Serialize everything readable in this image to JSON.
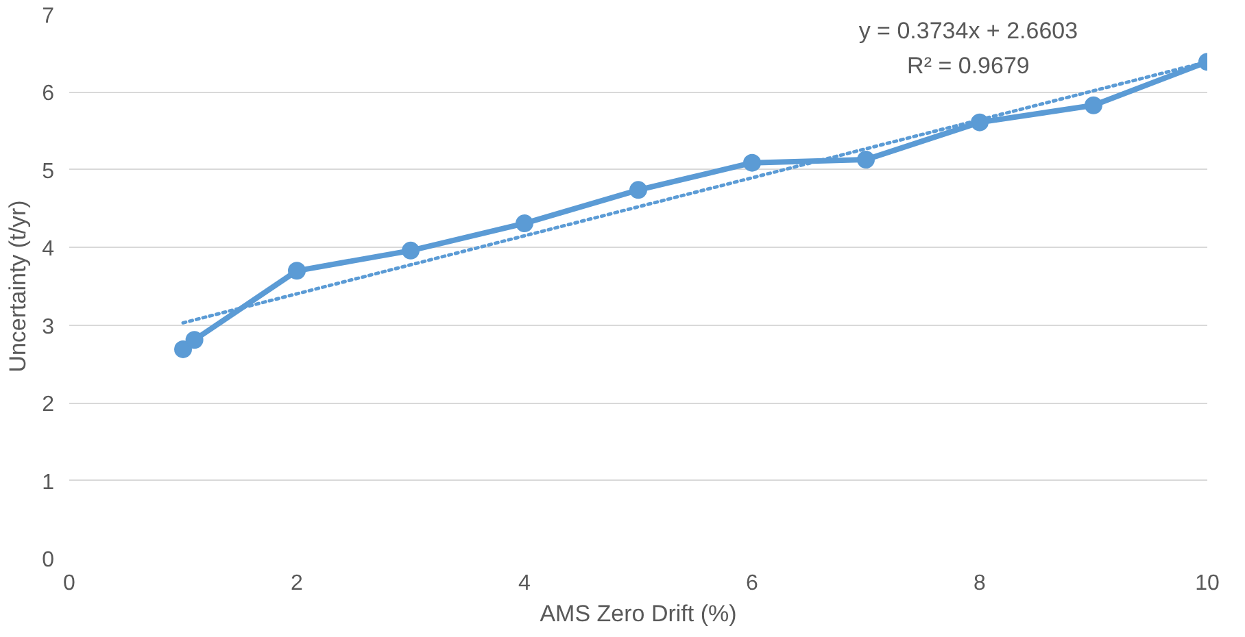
{
  "chart_data": {
    "type": "line",
    "xlabel": "AMS Zero Drift (%)",
    "ylabel": "Uncertainty (t/yr)",
    "xlim": [
      0,
      10
    ],
    "xticks": [
      0,
      2,
      4,
      6,
      8,
      10
    ],
    "ylim": [
      0,
      7
    ],
    "yticks": [
      0,
      1,
      2,
      3,
      4,
      5,
      6,
      7
    ],
    "grid": "y",
    "marker": "circle",
    "series": [
      {
        "color": "#5b9bd5",
        "x": [
          1,
          1.1,
          2,
          3,
          4,
          5,
          6,
          7,
          8,
          9,
          10
        ],
        "values": [
          2.69,
          2.81,
          3.7,
          3.96,
          4.31,
          4.74,
          5.09,
          5.13,
          5.61,
          5.83,
          6.39
        ],
        "line_style": "solid"
      },
      {
        "color": "#5b9bd5",
        "x": [
          1,
          10
        ],
        "values": [
          3.03,
          6.39
        ],
        "line_style": "dotted",
        "marker": "none"
      }
    ],
    "annotations": [
      "y = 0.3734x + 2.6603",
      "R² = 0.9679"
    ]
  }
}
